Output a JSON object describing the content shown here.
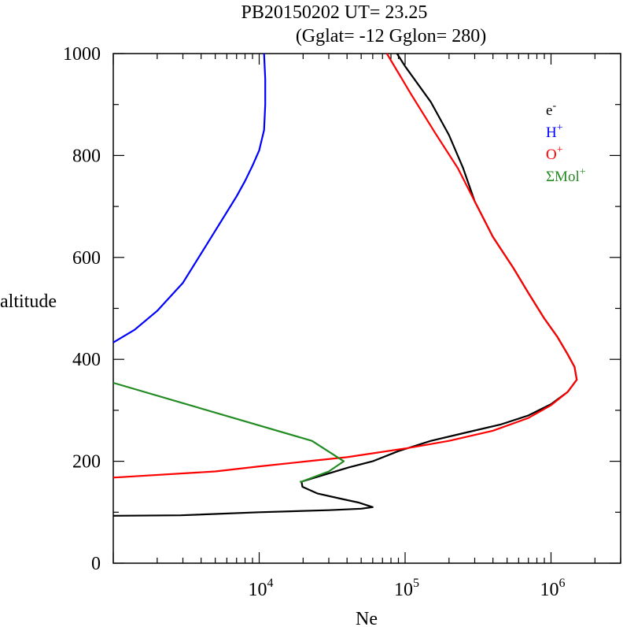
{
  "header": {
    "title_line1": "PB20150202   UT=  23.25",
    "title_line2": "(Gglat= -12   Gglon=  280)"
  },
  "chart_data": {
    "type": "line",
    "title": "PB20150202   UT=  23.25",
    "subtitle": "(Gglat= -12   Gglon=  280)",
    "xlabel": "Ne",
    "ylabel": "altitude",
    "xscale": "log",
    "xlim": [
      1000,
      3000000
    ],
    "ylim": [
      0,
      1000
    ],
    "x_ticks": [
      {
        "value": 10000,
        "base": "10",
        "exp": "4"
      },
      {
        "value": 100000,
        "base": "10",
        "exp": "5"
      },
      {
        "value": 1000000,
        "base": "10",
        "exp": "6"
      }
    ],
    "y_ticks": [
      {
        "value": 0,
        "label": "0"
      },
      {
        "value": 200,
        "label": "200"
      },
      {
        "value": 400,
        "label": "400"
      },
      {
        "value": 600,
        "label": "600"
      },
      {
        "value": 800,
        "label": "800"
      },
      {
        "value": 1000,
        "label": "1000"
      }
    ],
    "grid": false,
    "legend_position": "top-right",
    "series": [
      {
        "name": "e",
        "sup": "-",
        "color": "#000000",
        "points": [
          [
            1000,
            93
          ],
          [
            2900,
            94
          ],
          [
            10000,
            100
          ],
          [
            30000,
            104
          ],
          [
            50000,
            107
          ],
          [
            60000,
            110
          ],
          [
            48000,
            119
          ],
          [
            37000,
            126
          ],
          [
            25000,
            137
          ],
          [
            19800,
            150
          ],
          [
            19500,
            160
          ],
          [
            29000,
            175
          ],
          [
            41000,
            188
          ],
          [
            60000,
            200
          ],
          [
            90000,
            220
          ],
          [
            150000,
            240
          ],
          [
            250000,
            255
          ],
          [
            450000,
            272
          ],
          [
            700000,
            290
          ],
          [
            1000000,
            312
          ],
          [
            1300000,
            336
          ],
          [
            1500000,
            360
          ],
          [
            1450000,
            385
          ],
          [
            1300000,
            410
          ],
          [
            1100000,
            445
          ],
          [
            900000,
            480
          ],
          [
            700000,
            530
          ],
          [
            550000,
            580
          ],
          [
            400000,
            640
          ],
          [
            300000,
            710
          ],
          [
            250000,
            775
          ],
          [
            200000,
            840
          ],
          [
            150000,
            905
          ],
          [
            100000,
            975
          ],
          [
            88000,
            1000
          ]
        ]
      },
      {
        "name": "H",
        "sup": "+",
        "color": "#0000ff",
        "points": [
          [
            1000,
            433
          ],
          [
            1400,
            458
          ],
          [
            2000,
            495
          ],
          [
            3000,
            550
          ],
          [
            4700,
            640
          ],
          [
            7000,
            720
          ],
          [
            8000,
            750
          ],
          [
            9000,
            780
          ],
          [
            10000,
            810
          ],
          [
            10800,
            850
          ],
          [
            11000,
            900
          ],
          [
            11000,
            950
          ],
          [
            10800,
            1000
          ]
        ]
      },
      {
        "name": "O",
        "sup": "+",
        "color": "#ff0000",
        "points": [
          [
            1000,
            168
          ],
          [
            5000,
            180
          ],
          [
            10000,
            190
          ],
          [
            23000,
            201
          ],
          [
            40000,
            208
          ],
          [
            100000,
            225
          ],
          [
            200000,
            240
          ],
          [
            400000,
            260
          ],
          [
            700000,
            285
          ],
          [
            1000000,
            310
          ],
          [
            1300000,
            336
          ],
          [
            1500000,
            360
          ],
          [
            1450000,
            385
          ],
          [
            1300000,
            410
          ],
          [
            1100000,
            445
          ],
          [
            900000,
            480
          ],
          [
            700000,
            530
          ],
          [
            550000,
            580
          ],
          [
            400000,
            640
          ],
          [
            300000,
            710
          ],
          [
            230000,
            775
          ],
          [
            160000,
            845
          ],
          [
            110000,
            920
          ],
          [
            75000,
            1000
          ]
        ]
      },
      {
        "name": "ΣMol",
        "sup": "+",
        "color": "#228b22",
        "points": [
          [
            1000,
            354
          ],
          [
            23000,
            240
          ],
          [
            38000,
            200
          ],
          [
            30000,
            180
          ],
          [
            19500,
            160
          ],
          [
            19000,
            160
          ]
        ]
      }
    ]
  }
}
